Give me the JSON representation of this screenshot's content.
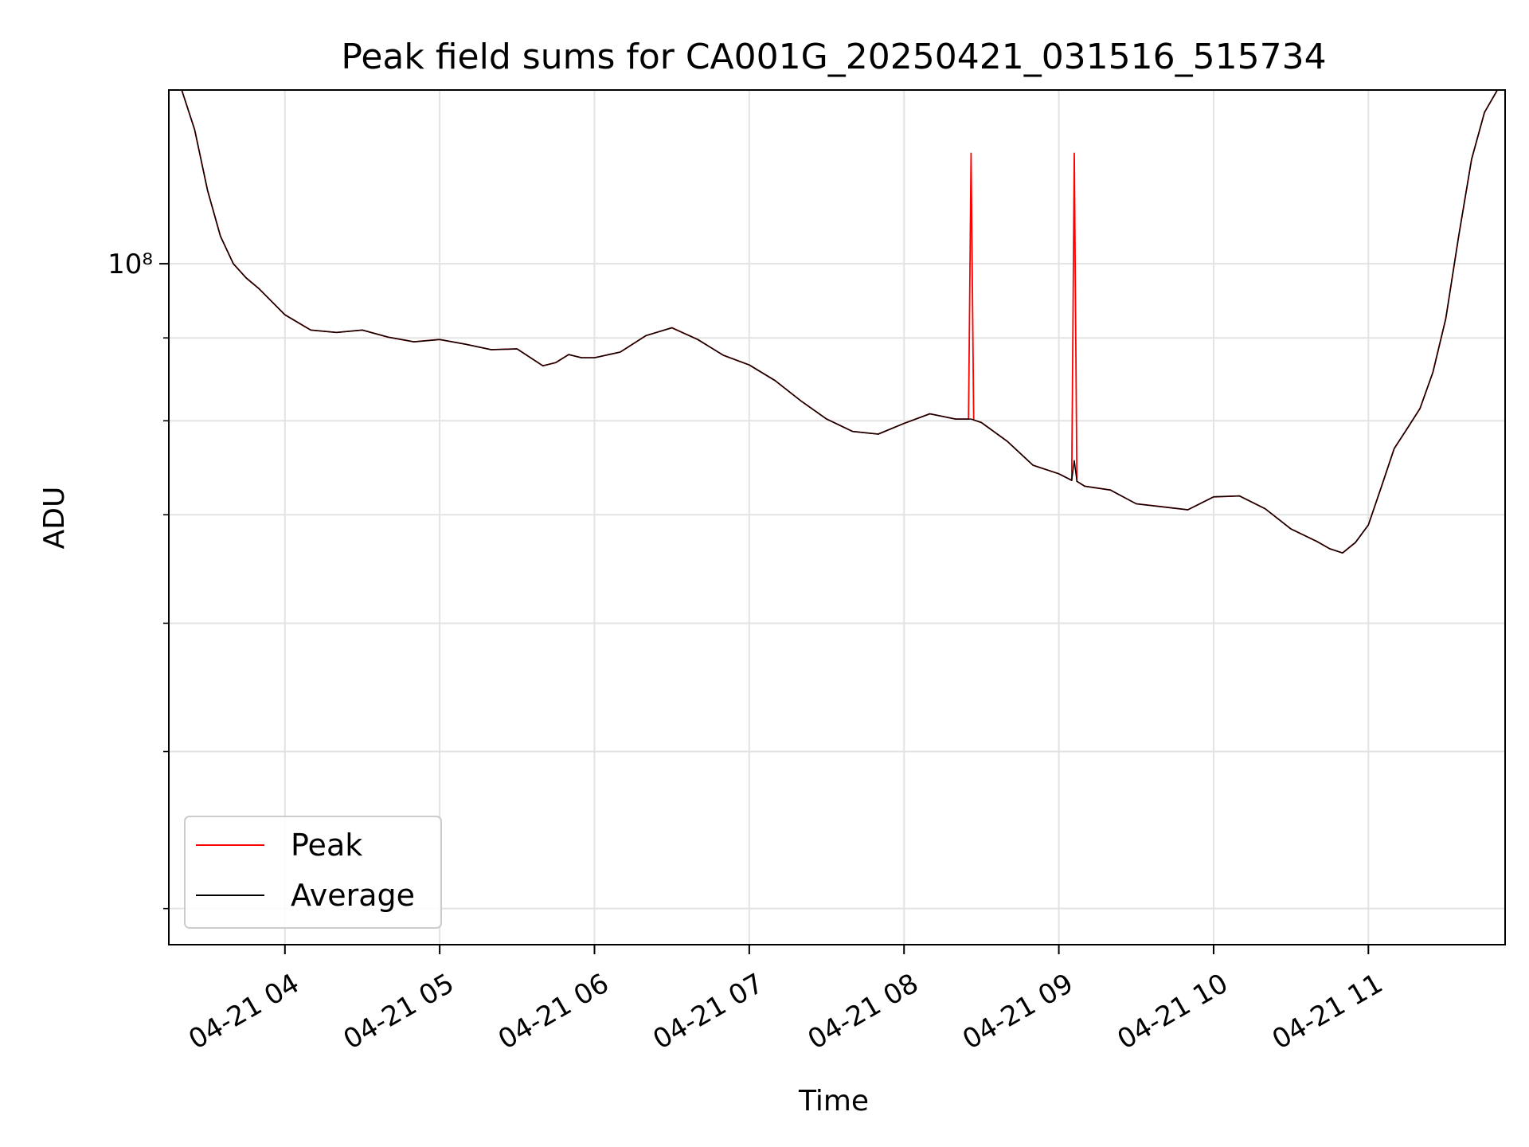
{
  "chart_data": {
    "type": "line",
    "title": "Peak field sums for CA001G_20250421_031516_515734",
    "xlabel": "Time",
    "ylabel": "ADU",
    "x_scale": "time",
    "y_scale": "log",
    "xlim": [
      "2025-04-21 03:15",
      "2025-04-21 11:53"
    ],
    "ylim": [
      38000000,
      128000000
    ],
    "x_tick_values": [
      "2025-04-21 04:00",
      "2025-04-21 05:00",
      "2025-04-21 06:00",
      "2025-04-21 07:00",
      "2025-04-21 08:00",
      "2025-04-21 09:00",
      "2025-04-21 10:00",
      "2025-04-21 11:00"
    ],
    "x_tick_labels": [
      "04-21 04",
      "04-21 05",
      "04-21 06",
      "04-21 07",
      "04-21 08",
      "04-21 09",
      "04-21 10",
      "04-21 11"
    ],
    "y_major_tick_values": [
      100000000
    ],
    "y_major_tick_labels": [
      "10⁸"
    ],
    "y_minor_tick_values": [
      40000000,
      50000000,
      60000000,
      70000000,
      80000000,
      90000000
    ],
    "grid": true,
    "legend_position": "lower-left",
    "series": [
      {
        "name": "Peak",
        "color": "#ff0000",
        "x": [
          "2025-04-21 03:15",
          "2025-04-21 03:20",
          "2025-04-21 03:25",
          "2025-04-21 03:30",
          "2025-04-21 03:35",
          "2025-04-21 03:40",
          "2025-04-21 03:45",
          "2025-04-21 03:50",
          "2025-04-21 04:00",
          "2025-04-21 04:10",
          "2025-04-21 04:20",
          "2025-04-21 04:30",
          "2025-04-21 04:40",
          "2025-04-21 04:50",
          "2025-04-21 05:00",
          "2025-04-21 05:10",
          "2025-04-21 05:20",
          "2025-04-21 05:30",
          "2025-04-21 05:40",
          "2025-04-21 05:45",
          "2025-04-21 05:50",
          "2025-04-21 05:55",
          "2025-04-21 06:00",
          "2025-04-21 06:10",
          "2025-04-21 06:20",
          "2025-04-21 06:30",
          "2025-04-21 06:40",
          "2025-04-21 06:50",
          "2025-04-21 07:00",
          "2025-04-21 07:10",
          "2025-04-21 07:20",
          "2025-04-21 07:30",
          "2025-04-21 07:40",
          "2025-04-21 07:50",
          "2025-04-21 08:00",
          "2025-04-21 08:10",
          "2025-04-21 08:20",
          "2025-04-21 08:25",
          "2025-04-21 08:26",
          "2025-04-21 08:27",
          "2025-04-21 08:30",
          "2025-04-21 08:40",
          "2025-04-21 08:50",
          "2025-04-21 09:00",
          "2025-04-21 09:05",
          "2025-04-21 09:06",
          "2025-04-21 09:07",
          "2025-04-21 09:10",
          "2025-04-21 09:20",
          "2025-04-21 09:30",
          "2025-04-21 09:40",
          "2025-04-21 09:50",
          "2025-04-21 10:00",
          "2025-04-21 10:10",
          "2025-04-21 10:20",
          "2025-04-21 10:30",
          "2025-04-21 10:40",
          "2025-04-21 10:45",
          "2025-04-21 10:50",
          "2025-04-21 10:55",
          "2025-04-21 11:00",
          "2025-04-21 11:05",
          "2025-04-21 11:10",
          "2025-04-21 11:15",
          "2025-04-21 11:20",
          "2025-04-21 11:25",
          "2025-04-21 11:30",
          "2025-04-21 11:35",
          "2025-04-21 11:40",
          "2025-04-21 11:45",
          "2025-04-21 11:50",
          "2025-04-21 11:53"
        ],
        "y": [
          128000000,
          128000000,
          121000000,
          111000000,
          104000000,
          100000000,
          98000000,
          96500000,
          93000000,
          91000000,
          90700000,
          91000000,
          90100000,
          89500000,
          89800000,
          89200000,
          88500000,
          88600000,
          86500000,
          86900000,
          87900000,
          87500000,
          87500000,
          88200000,
          90300000,
          91300000,
          89800000,
          87800000,
          86600000,
          84700000,
          82300000,
          80200000,
          78800000,
          78500000,
          79700000,
          80800000,
          80200000,
          80200000,
          117000000,
          80100000,
          79800000,
          77700000,
          75100000,
          74200000,
          73500000,
          117000000,
          73400000,
          72900000,
          72500000,
          71100000,
          70800000,
          70500000,
          71800000,
          71900000,
          70600000,
          68600000,
          67400000,
          66700000,
          66300000,
          67300000,
          69000000,
          72800000,
          76900000,
          79100000,
          81400000,
          85700000,
          92500000,
          104000000,
          116000000,
          124000000,
          128000000,
          128000000
        ]
      },
      {
        "name": "Average",
        "color": "#000000",
        "x": [
          "2025-04-21 03:15",
          "2025-04-21 03:20",
          "2025-04-21 03:25",
          "2025-04-21 03:30",
          "2025-04-21 03:35",
          "2025-04-21 03:40",
          "2025-04-21 03:45",
          "2025-04-21 03:50",
          "2025-04-21 04:00",
          "2025-04-21 04:10",
          "2025-04-21 04:20",
          "2025-04-21 04:30",
          "2025-04-21 04:40",
          "2025-04-21 04:50",
          "2025-04-21 05:00",
          "2025-04-21 05:10",
          "2025-04-21 05:20",
          "2025-04-21 05:30",
          "2025-04-21 05:40",
          "2025-04-21 05:45",
          "2025-04-21 05:50",
          "2025-04-21 05:55",
          "2025-04-21 06:00",
          "2025-04-21 06:10",
          "2025-04-21 06:20",
          "2025-04-21 06:30",
          "2025-04-21 06:40",
          "2025-04-21 06:50",
          "2025-04-21 07:00",
          "2025-04-21 07:10",
          "2025-04-21 07:20",
          "2025-04-21 07:30",
          "2025-04-21 07:40",
          "2025-04-21 07:50",
          "2025-04-21 08:00",
          "2025-04-21 08:10",
          "2025-04-21 08:20",
          "2025-04-21 08:25",
          "2025-04-21 08:26",
          "2025-04-21 08:27",
          "2025-04-21 08:30",
          "2025-04-21 08:40",
          "2025-04-21 08:50",
          "2025-04-21 09:00",
          "2025-04-21 09:05",
          "2025-04-21 09:06",
          "2025-04-21 09:07",
          "2025-04-21 09:10",
          "2025-04-21 09:20",
          "2025-04-21 09:30",
          "2025-04-21 09:40",
          "2025-04-21 09:50",
          "2025-04-21 10:00",
          "2025-04-21 10:10",
          "2025-04-21 10:20",
          "2025-04-21 10:30",
          "2025-04-21 10:40",
          "2025-04-21 10:45",
          "2025-04-21 10:50",
          "2025-04-21 10:55",
          "2025-04-21 11:00",
          "2025-04-21 11:05",
          "2025-04-21 11:10",
          "2025-04-21 11:15",
          "2025-04-21 11:20",
          "2025-04-21 11:25",
          "2025-04-21 11:30",
          "2025-04-21 11:35",
          "2025-04-21 11:40",
          "2025-04-21 11:45",
          "2025-04-21 11:50",
          "2025-04-21 11:53"
        ],
        "y": [
          128000000,
          128000000,
          121000000,
          111000000,
          104000000,
          100000000,
          98000000,
          96500000,
          93000000,
          91000000,
          90700000,
          91000000,
          90100000,
          89500000,
          89800000,
          89200000,
          88500000,
          88600000,
          86500000,
          86900000,
          87900000,
          87500000,
          87500000,
          88200000,
          90300000,
          91300000,
          89800000,
          87800000,
          86600000,
          84700000,
          82300000,
          80200000,
          78800000,
          78500000,
          79700000,
          80800000,
          80200000,
          80200000,
          80200000,
          80100000,
          79800000,
          77700000,
          75100000,
          74200000,
          73500000,
          75600000,
          73400000,
          72900000,
          72500000,
          71100000,
          70800000,
          70500000,
          71800000,
          71900000,
          70600000,
          68600000,
          67400000,
          66700000,
          66300000,
          67300000,
          69000000,
          72800000,
          76900000,
          79100000,
          81400000,
          85700000,
          92500000,
          104000000,
          116000000,
          124000000,
          128000000,
          128000000
        ]
      }
    ]
  }
}
